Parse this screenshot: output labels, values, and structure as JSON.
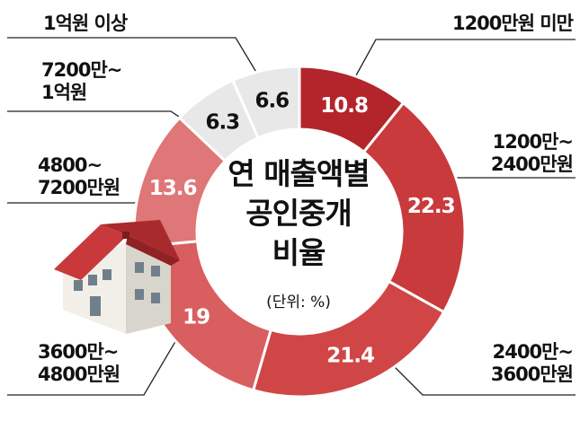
{
  "chart_data": {
    "type": "donut",
    "title": "연 매출액별\n공인중개\n비율",
    "subtitle": "(단위: %)",
    "categories": [
      "1200만원 미만",
      "1200만~\n2400만원",
      "2400만~\n3600만원",
      "3600만~\n4800만원",
      "4800~\n7200만원",
      "7200만~\n1억원",
      "1억원 이상"
    ],
    "values": [
      10.8,
      22.3,
      21.4,
      19,
      13.6,
      6.3,
      6.6
    ],
    "colors": [
      "#b3252b",
      "#c93a3c",
      "#d04646",
      "#d95e5f",
      "#df7677",
      "#e8e8e8",
      "#e8e8e8"
    ]
  }
}
